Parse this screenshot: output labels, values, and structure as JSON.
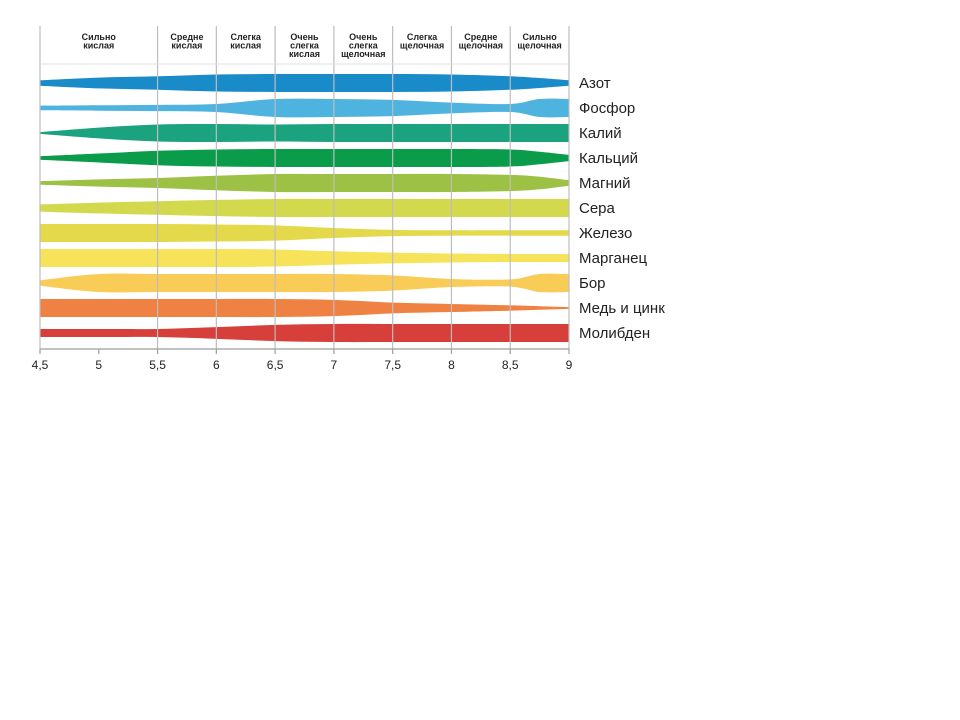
{
  "chart_data": {
    "type": "area",
    "x_axis": {
      "ticks": [
        "4,5",
        "5",
        "5,5",
        "6",
        "6,5",
        "7",
        "7,5",
        "8",
        "8,5",
        "9"
      ],
      "tick_values": [
        4.5,
        5,
        5.5,
        6,
        6.5,
        7,
        7.5,
        8,
        8.5,
        9
      ],
      "range": [
        4.5,
        9
      ]
    },
    "zones": [
      {
        "lines": [
          "Сильно",
          "кислая"
        ],
        "from": 4.5,
        "to": 5.5
      },
      {
        "lines": [
          "Средне",
          "кислая"
        ],
        "from": 5.5,
        "to": 6.0
      },
      {
        "lines": [
          "Слегка",
          "кислая"
        ],
        "from": 6.0,
        "to": 6.5
      },
      {
        "lines": [
          "Очень",
          "слегка",
          "кислая"
        ],
        "from": 6.5,
        "to": 7.0
      },
      {
        "lines": [
          "Очень",
          "слегка",
          "щелочная"
        ],
        "from": 7.0,
        "to": 7.5
      },
      {
        "lines": [
          "Слегка",
          "щелочная"
        ],
        "from": 7.5,
        "to": 8.0
      },
      {
        "lines": [
          "Средне",
          "щелочная"
        ],
        "from": 8.0,
        "to": 8.5
      },
      {
        "lines": [
          "Сильно",
          "щелочная"
        ],
        "from": 8.5,
        "to": 9.0
      }
    ],
    "x": [
      4.5,
      5.0,
      5.5,
      6.0,
      6.5,
      7.0,
      7.5,
      8.0,
      8.5,
      8.75,
      9.0
    ],
    "series": [
      {
        "name": "Азот",
        "color": "#1a8bc9",
        "values": [
          0.3,
          0.6,
          0.75,
          0.95,
          1.0,
          1.0,
          1.0,
          0.95,
          0.75,
          0.55,
          0.3
        ]
      },
      {
        "name": "Фосфор",
        "color": "#4eb3de",
        "values": [
          0.25,
          0.3,
          0.35,
          0.45,
          1.0,
          1.0,
          0.9,
          0.6,
          0.45,
          1.0,
          1.0
        ]
      },
      {
        "name": "Калий",
        "color": "#1aa37e",
        "values": [
          0.1,
          0.6,
          0.95,
          1.0,
          0.95,
          1.0,
          1.0,
          1.0,
          1.0,
          1.0,
          1.0
        ]
      },
      {
        "name": "Кальций",
        "color": "#0a9c4a",
        "values": [
          0.2,
          0.5,
          0.8,
          0.95,
          1.0,
          1.0,
          1.0,
          1.0,
          0.95,
          0.7,
          0.35
        ]
      },
      {
        "name": "Магний",
        "color": "#9dc145",
        "values": [
          0.2,
          0.4,
          0.55,
          0.8,
          1.0,
          1.0,
          1.0,
          1.0,
          0.9,
          0.7,
          0.3
        ]
      },
      {
        "name": "Сера",
        "color": "#d3d94c",
        "values": [
          0.4,
          0.6,
          0.75,
          0.9,
          1.0,
          1.0,
          1.0,
          1.0,
          1.0,
          1.0,
          1.0
        ]
      },
      {
        "name": "Железо",
        "color": "#e3d94a",
        "values": [
          1.0,
          1.0,
          1.0,
          0.95,
          0.85,
          0.55,
          0.35,
          0.3,
          0.3,
          0.3,
          0.3
        ]
      },
      {
        "name": "Марганец",
        "color": "#f6e35a",
        "values": [
          1.0,
          1.0,
          1.0,
          1.0,
          0.95,
          0.75,
          0.6,
          0.5,
          0.45,
          0.45,
          0.45
        ]
      },
      {
        "name": "Бор",
        "color": "#f8cc56",
        "values": [
          0.3,
          1.0,
          1.0,
          1.0,
          1.0,
          1.0,
          0.85,
          0.45,
          0.4,
          1.0,
          1.0
        ]
      },
      {
        "name": "Медь и цинк",
        "color": "#ef8243",
        "values": [
          1.0,
          1.0,
          1.0,
          1.0,
          1.0,
          0.9,
          0.6,
          0.45,
          0.3,
          0.2,
          0.1
        ]
      },
      {
        "name": "Молибден",
        "color": "#d63f3a",
        "values": [
          0.45,
          0.45,
          0.45,
          0.65,
          0.9,
          1.0,
          1.0,
          1.0,
          1.0,
          1.0,
          1.0
        ]
      }
    ]
  }
}
